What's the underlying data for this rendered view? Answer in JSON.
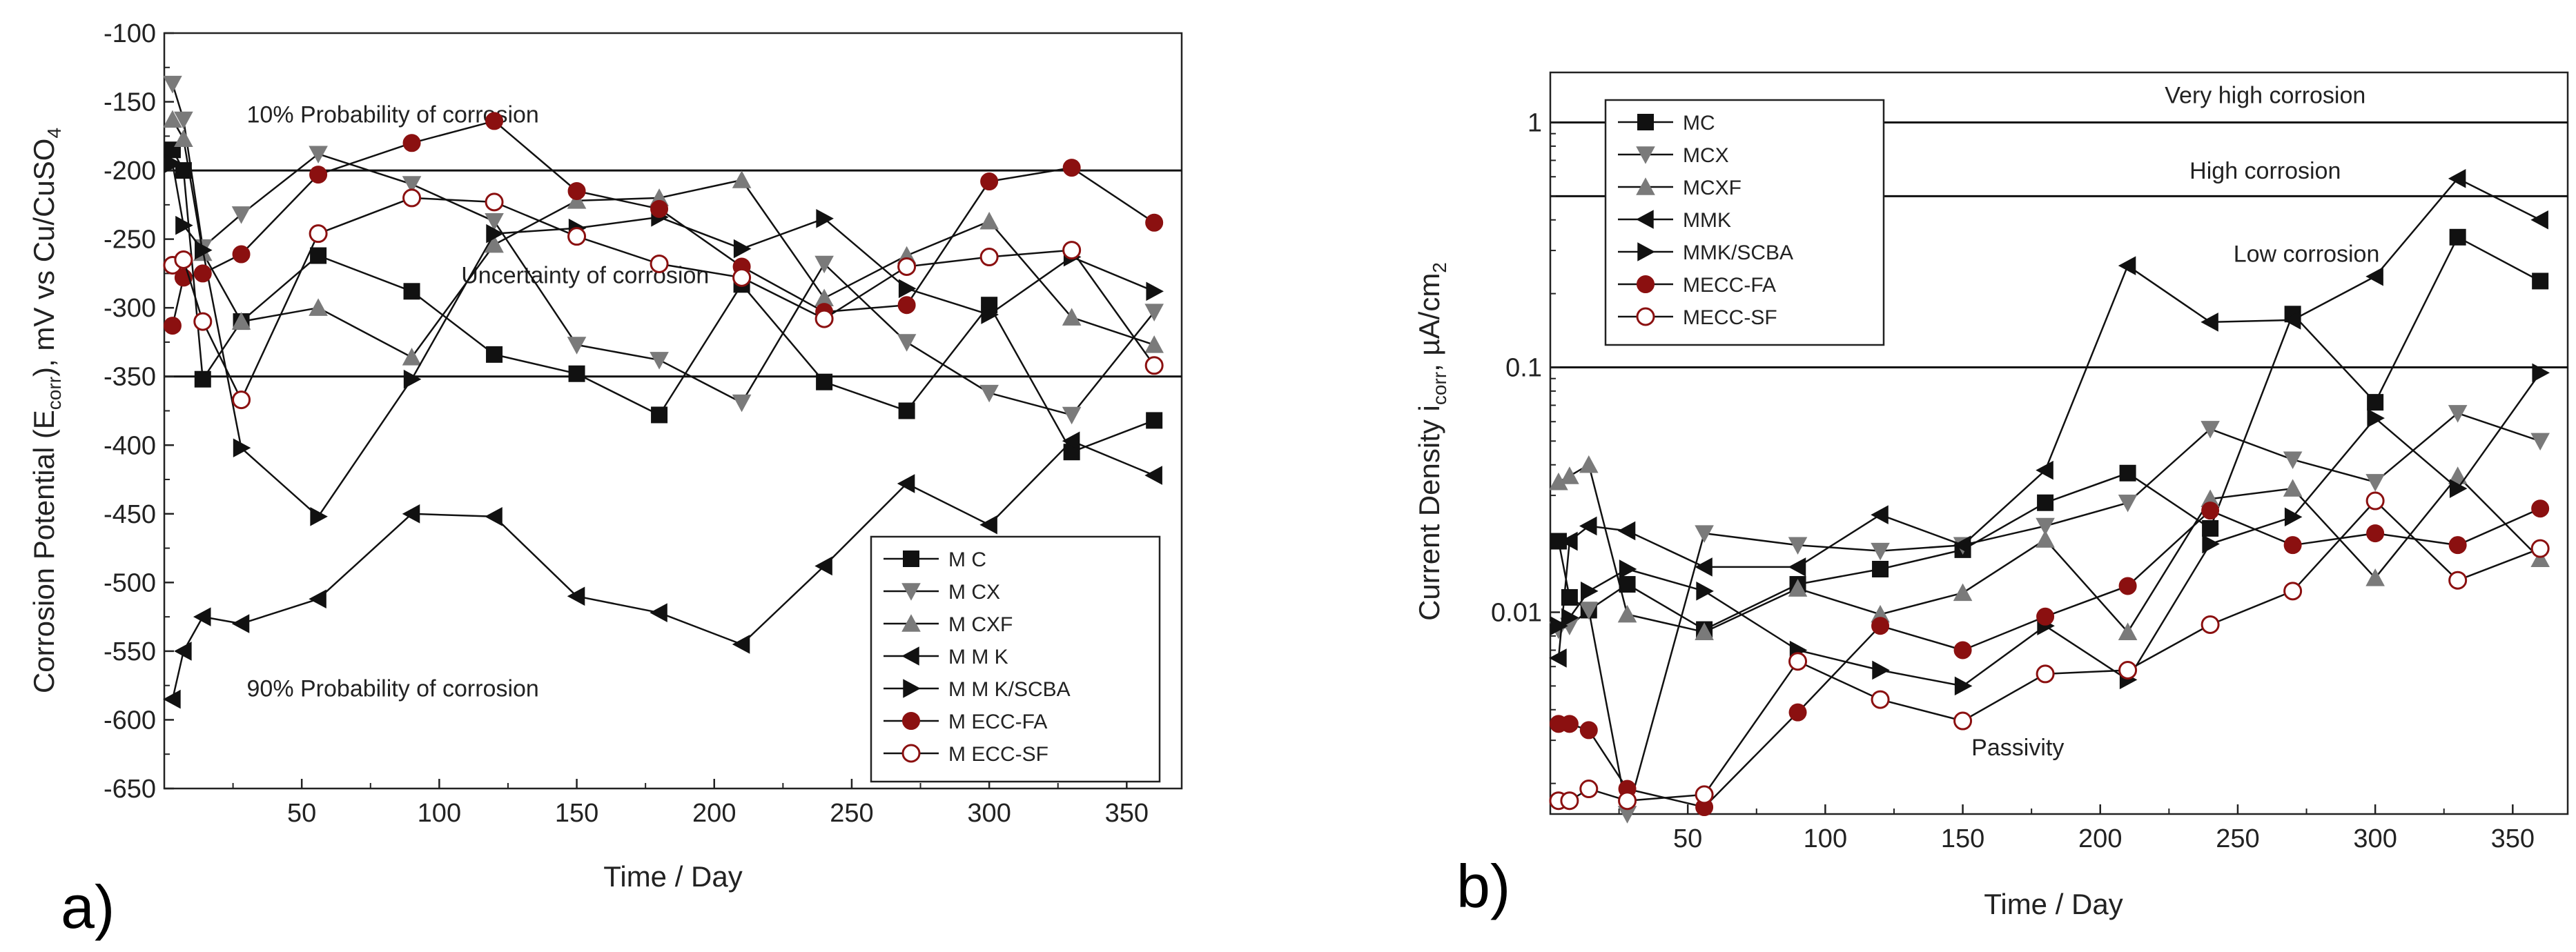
{
  "chart_data": [
    {
      "type": "line",
      "panel_label": "a)",
      "xlabel": "Time / Day",
      "ylabel_parts": [
        "Corrosion Potential (E",
        "corr",
        "), mV vs Cu/CuSO",
        "4"
      ],
      "xlim": [
        0,
        370
      ],
      "ylim": [
        -650,
        -100
      ],
      "yscale": "linear",
      "xticks": [
        50,
        100,
        150,
        200,
        250,
        300,
        350
      ],
      "yticks": [
        -100,
        -150,
        -200,
        -250,
        -300,
        -350,
        -400,
        -450,
        -500,
        -550,
        -600,
        -650
      ],
      "hlines": [
        -200,
        -350
      ],
      "annotations": [
        {
          "text": "10% Probability of corrosion",
          "x": 30,
          "y": -165
        },
        {
          "text": "Uncertainty of corrosion",
          "x": 108,
          "y": -282
        },
        {
          "text": "90% Probability of corrosion",
          "x": 30,
          "y": -583
        }
      ],
      "legend_position": "bottom-right",
      "x": [
        3,
        7,
        14,
        28,
        56,
        90,
        120,
        150,
        180,
        210,
        240,
        270,
        300,
        330,
        360
      ],
      "series": [
        {
          "name": "M C",
          "marker": "square",
          "color": "#111111",
          "values": [
            -185,
            -200,
            -352,
            -310,
            -262,
            -288,
            -334,
            -348,
            -378,
            -283,
            -354,
            -375,
            -298,
            -405,
            -382
          ]
        },
        {
          "name": "M CX",
          "marker": "triangle-down",
          "color": "#7a7a7a",
          "values": [
            -137,
            -163,
            -256,
            -232,
            -188,
            -210,
            -237,
            -327,
            -338,
            -369,
            -268,
            -325,
            -362,
            -378,
            -303
          ]
        },
        {
          "name": "M CXF",
          "marker": "triangle-up",
          "color": "#7a7a7a",
          "values": [
            -163,
            -177,
            -260,
            -310,
            -300,
            -336,
            -254,
            -222,
            -220,
            -207,
            -293,
            -262,
            -237,
            -307,
            -327
          ]
        },
        {
          "name": "M M K",
          "marker": "triangle-left",
          "color": "#111111",
          "values": [
            -585,
            -550,
            -525,
            -530,
            -512,
            -450,
            -452,
            -510,
            -522,
            -545,
            -488,
            -428,
            -458,
            -397,
            -422
          ]
        },
        {
          "name": "M M K/SCBA",
          "marker": "triangle-right",
          "color": "#111111",
          "values": [
            -195,
            -240,
            -258,
            -402,
            -452,
            -352,
            -246,
            -242,
            -234,
            -257,
            -235,
            -286,
            -305,
            -263,
            -288
          ]
        },
        {
          "name": "M ECC-FA",
          "marker": "circle",
          "color": "#8b1010",
          "fill": true,
          "values": [
            -313,
            -278,
            -275,
            -261,
            -203,
            -180,
            -164,
            -215,
            -228,
            -270,
            -303,
            -298,
            -208,
            -198,
            -238
          ]
        },
        {
          "name": "M ECC-SF",
          "marker": "circle-open",
          "color": "#8b1010",
          "fill": false,
          "values": [
            -269,
            -265,
            -310,
            -367,
            -246,
            -220,
            -223,
            -248,
            -268,
            -278,
            -308,
            -270,
            -263,
            -258,
            -342
          ]
        }
      ]
    },
    {
      "type": "line",
      "panel_label": "b)",
      "xlabel": "Time / Day",
      "ylabel_parts": [
        "Current Density i",
        "corr",
        ", µA/cm",
        "2"
      ],
      "xlim": [
        0,
        370
      ],
      "ylim": [
        0.0015,
        1.6
      ],
      "yscale": "log",
      "xticks": [
        50,
        100,
        150,
        200,
        250,
        300,
        350
      ],
      "yticks": [
        1,
        0.1,
        0.01
      ],
      "ytick_labels": [
        "1",
        "0.1",
        "0.01"
      ],
      "hlines": [
        1,
        0.5,
        0.1
      ],
      "annotations": [
        {
          "text": "Very high corrosion",
          "x": 260,
          "y": 1.2
        },
        {
          "text": "High corrosion",
          "x": 260,
          "y": 0.59
        },
        {
          "text": "Low corrosion",
          "x": 275,
          "y": 0.27
        },
        {
          "text": "Passivity",
          "x": 170,
          "y": 0.0026
        }
      ],
      "legend_position": "top-left",
      "x": [
        3,
        7,
        14,
        28,
        56,
        90,
        120,
        150,
        180,
        210,
        240,
        270,
        300,
        330,
        360
      ],
      "series": [
        {
          "name": "MC",
          "marker": "square",
          "color": "#111111",
          "values": [
            0.0195,
            0.0115,
            0.0102,
            0.013,
            0.0085,
            0.013,
            0.015,
            0.018,
            0.028,
            0.037,
            0.022,
            0.165,
            0.072,
            0.34,
            0.225
          ]
        },
        {
          "name": "MCX",
          "marker": "triangle-down",
          "color": "#7a7a7a",
          "values": [
            0.0085,
            0.0088,
            0.0102,
            0.0015,
            0.021,
            0.0188,
            0.0178,
            0.0188,
            0.0225,
            0.028,
            0.056,
            0.042,
            0.034,
            0.065,
            0.05
          ]
        },
        {
          "name": "MCXF",
          "marker": "triangle-up",
          "color": "#7a7a7a",
          "values": [
            0.034,
            0.036,
            0.04,
            0.0098,
            0.0083,
            0.0125,
            0.0098,
            0.012,
            0.0198,
            0.0083,
            0.029,
            0.032,
            0.0138,
            0.036,
            0.0165
          ]
        },
        {
          "name": "MMK",
          "marker": "triangle-left",
          "color": "#111111",
          "values": [
            0.0065,
            0.0195,
            0.0225,
            0.0215,
            0.0153,
            0.0153,
            0.025,
            0.0188,
            0.038,
            0.26,
            0.153,
            0.156,
            0.235,
            0.59,
            0.4
          ]
        },
        {
          "name": "MMK/SCBA",
          "marker": "triangle-right",
          "color": "#111111",
          "values": [
            0.0088,
            0.0095,
            0.0122,
            0.015,
            0.0122,
            0.007,
            0.0058,
            0.005,
            0.0088,
            0.0053,
            0.019,
            0.0245,
            0.062,
            0.032,
            0.095
          ]
        },
        {
          "name": "MECC-FA",
          "marker": "circle",
          "color": "#8b1010",
          "fill": true,
          "values": [
            0.0035,
            0.0035,
            0.0033,
            0.0019,
            0.0016,
            0.0039,
            0.0088,
            0.007,
            0.0096,
            0.0128,
            0.026,
            0.0188,
            0.021,
            0.0188,
            0.0265
          ]
        },
        {
          "name": "MECC-SF",
          "marker": "circle-open",
          "color": "#8b1010",
          "fill": false,
          "values": [
            0.0017,
            0.0017,
            0.0019,
            0.0017,
            0.0018,
            0.0063,
            0.0044,
            0.0036,
            0.0056,
            0.0058,
            0.0089,
            0.0122,
            0.0285,
            0.0135,
            0.0182
          ]
        }
      ]
    }
  ]
}
